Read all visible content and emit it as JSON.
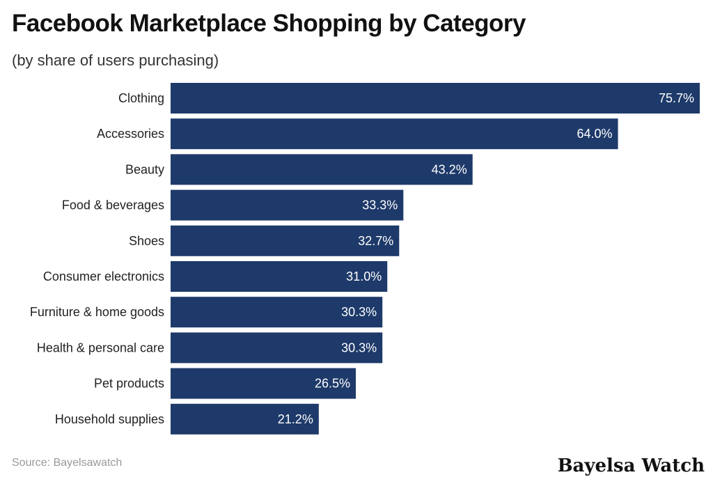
{
  "header": {
    "title": "Facebook Marketplace Shopping by Category",
    "subtitle": "(by share of users purchasing)"
  },
  "footer": {
    "source": "Source: Bayelsawatch",
    "brand": "Bayelsa Watch"
  },
  "colors": {
    "bar": "#1e3a6a",
    "bar_label": "#ffffff",
    "category_label": "#222222"
  },
  "chart_data": {
    "type": "bar",
    "orientation": "horizontal",
    "title": "Facebook Marketplace Shopping by Category",
    "subtitle": "(by share of users purchasing)",
    "categories": [
      "Clothing",
      "Accessories",
      "Beauty",
      "Food & beverages",
      "Shoes",
      "Consumer electronics",
      "Furniture & home goods",
      "Health & personal care",
      "Pet products",
      "Household supplies"
    ],
    "values": [
      75.7,
      64.0,
      43.2,
      33.3,
      32.7,
      31.0,
      30.3,
      30.3,
      26.5,
      21.2
    ],
    "labels": [
      "75.7%",
      "64.0%",
      "43.2%",
      "33.3%",
      "32.7%",
      "31.0%",
      "30.3%",
      "30.3%",
      "26.5%",
      "21.2%"
    ],
    "unit": "%",
    "xlim": [
      0,
      75.7
    ],
    "grid": false,
    "legend": "none"
  }
}
